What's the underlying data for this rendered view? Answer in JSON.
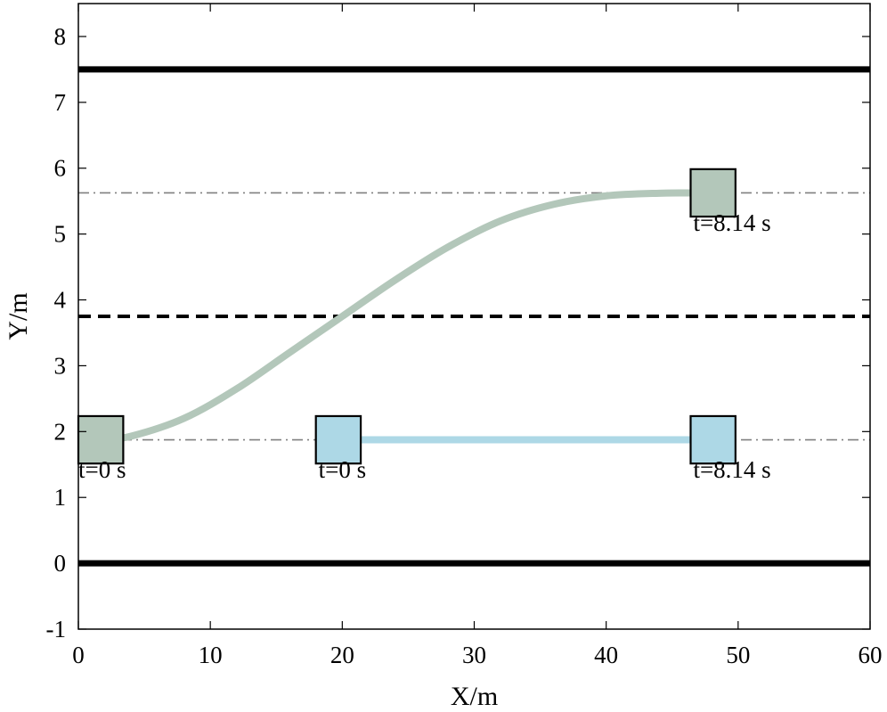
{
  "chart_data": {
    "type": "line",
    "title": "",
    "xlabel": "X/m",
    "ylabel": "Y/m",
    "xlim": [
      0,
      60
    ],
    "ylim": [
      -1,
      8.5
    ],
    "xticks": [
      0,
      10,
      20,
      30,
      40,
      50,
      60
    ],
    "yticks": [
      -1,
      0,
      1,
      2,
      3,
      4,
      5,
      6,
      7,
      8
    ],
    "grid": false,
    "road_lines": [
      {
        "style": "solid-thick",
        "y": 7.5,
        "color": "#000000"
      },
      {
        "style": "solid-thick",
        "y": 0,
        "color": "#000000"
      },
      {
        "style": "dashed",
        "y": 3.75,
        "color": "#000000"
      },
      {
        "style": "dash-dot",
        "y": 5.625,
        "color": "#808080"
      },
      {
        "style": "dash-dot",
        "y": 1.875,
        "color": "#808080"
      }
    ],
    "series": [
      {
        "color": "#b3c7ba",
        "x": [
          1.7,
          4,
          8,
          12,
          16,
          20,
          24,
          28,
          32,
          36,
          40,
          44,
          48
        ],
        "y": [
          1.875,
          1.93,
          2.2,
          2.65,
          3.2,
          3.75,
          4.3,
          4.8,
          5.2,
          5.45,
          5.58,
          5.62,
          5.625
        ]
      },
      {
        "color": "#add8e6",
        "x": [
          19.7,
          48.1
        ],
        "y": [
          1.875,
          1.875
        ]
      }
    ],
    "vehicles": [
      {
        "x": 1.7,
        "y": 1.875,
        "color": "#b3c7ba",
        "label": "t=0 s",
        "label_x": 0,
        "label_y": 1.3
      },
      {
        "x": 48.1,
        "y": 5.625,
        "color": "#b3c7ba",
        "label": "t=8.14 s",
        "label_x": 46.6,
        "label_y": 5.05
      },
      {
        "x": 19.7,
        "y": 1.875,
        "color": "#add8e6",
        "label": "t=0 s",
        "label_x": 18.2,
        "label_y": 1.3
      },
      {
        "x": 48.1,
        "y": 1.875,
        "color": "#add8e6",
        "label": "t=8.14 s",
        "label_x": 46.6,
        "label_y": 1.3
      }
    ],
    "vehicle_size": {
      "length": 3.4,
      "width": 0.72
    }
  }
}
